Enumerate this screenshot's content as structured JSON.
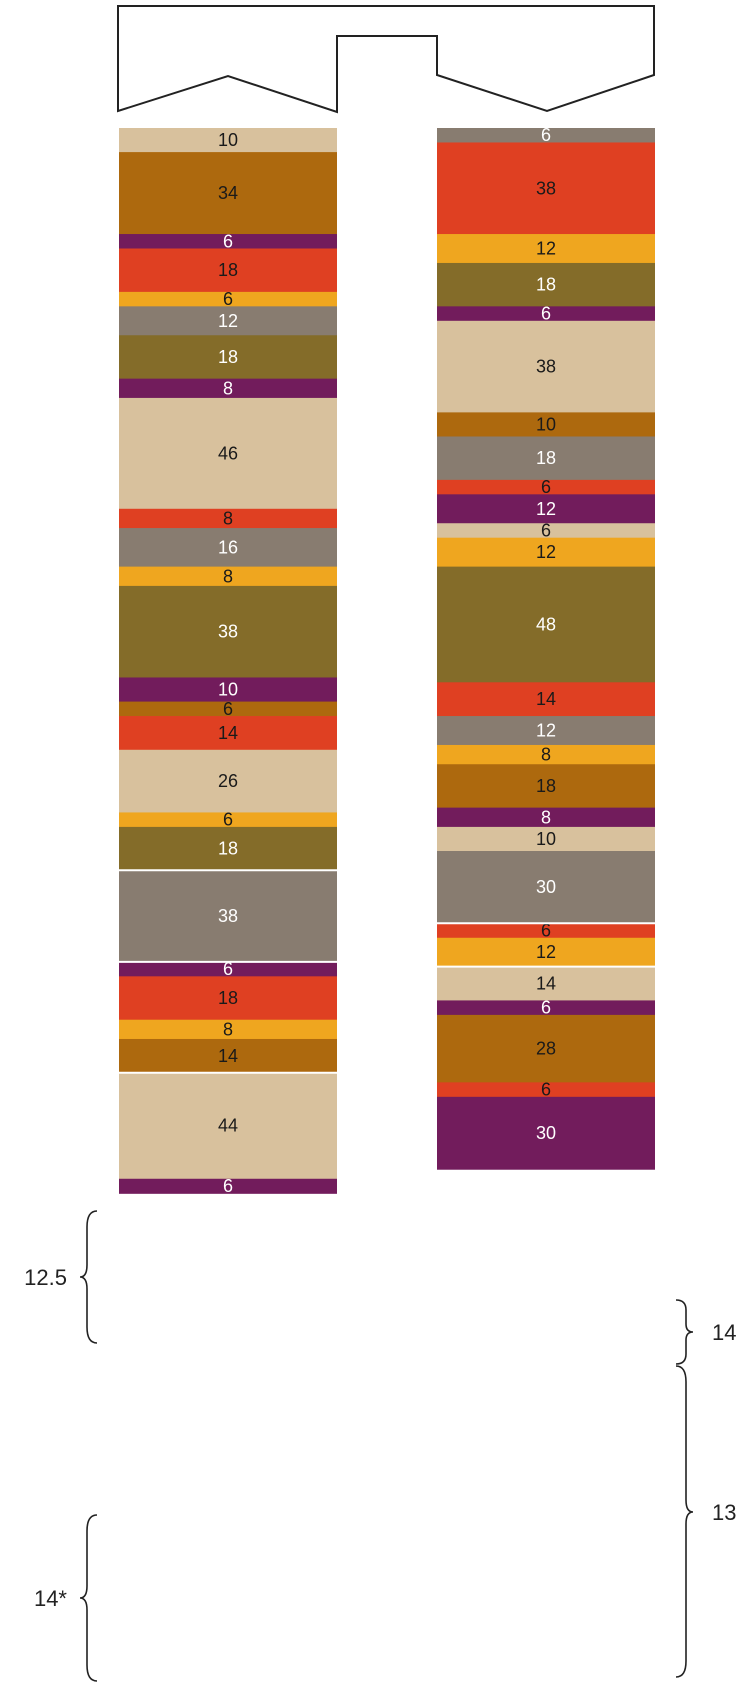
{
  "palette": {
    "tan": "#d8c19d",
    "brown": "#ad690e",
    "purple": "#721c5c",
    "red": "#df4022",
    "orange": "#efa61f",
    "gray": "#887c70",
    "olive": "#846c29",
    "dark_text": "#1a1a1a",
    "light_text": "#ffffff"
  },
  "left_column": [
    {
      "value": "10",
      "color": "tan"
    },
    {
      "value": "34",
      "color": "brown"
    },
    {
      "value": "6",
      "color": "purple"
    },
    {
      "value": "18",
      "color": "red"
    },
    {
      "value": "6",
      "color": "orange"
    },
    {
      "value": "12",
      "color": "gray"
    },
    {
      "value": "18",
      "color": "olive"
    },
    {
      "value": "8",
      "color": "purple"
    },
    {
      "value": "46",
      "color": "tan"
    },
    {
      "value": "8",
      "color": "red"
    },
    {
      "value": "16",
      "color": "gray"
    },
    {
      "value": "8",
      "color": "orange"
    },
    {
      "value": "38",
      "color": "olive"
    },
    {
      "value": "10",
      "color": "purple"
    },
    {
      "value": "6",
      "color": "brown"
    },
    {
      "value": "14",
      "color": "red"
    },
    {
      "value": "26",
      "color": "tan"
    },
    {
      "value": "6",
      "color": "orange"
    },
    {
      "value": "18",
      "color": "olive"
    },
    {
      "value": "38",
      "color": "gray"
    },
    {
      "value": "6",
      "color": "purple"
    },
    {
      "value": "18",
      "color": "red"
    },
    {
      "value": "8",
      "color": "orange"
    },
    {
      "value": "14",
      "color": "brown"
    },
    {
      "value": "44",
      "color": "tan"
    },
    {
      "value": "6",
      "color": "purple"
    }
  ],
  "right_column": [
    {
      "value": "6",
      "color": "gray"
    },
    {
      "value": "38",
      "color": "red"
    },
    {
      "value": "12",
      "color": "orange"
    },
    {
      "value": "18",
      "color": "olive"
    },
    {
      "value": "6",
      "color": "purple"
    },
    {
      "value": "38",
      "color": "tan"
    },
    {
      "value": "10",
      "color": "brown"
    },
    {
      "value": "18",
      "color": "gray"
    },
    {
      "value": "6",
      "color": "red"
    },
    {
      "value": "12",
      "color": "purple"
    },
    {
      "value": "6",
      "color": "tan"
    },
    {
      "value": "12",
      "color": "orange"
    },
    {
      "value": "48",
      "color": "olive"
    },
    {
      "value": "14",
      "color": "red"
    },
    {
      "value": "12",
      "color": "gray"
    },
    {
      "value": "8",
      "color": "orange"
    },
    {
      "value": "18",
      "color": "brown"
    },
    {
      "value": "8",
      "color": "purple"
    },
    {
      "value": "10",
      "color": "tan"
    },
    {
      "value": "30",
      "color": "gray"
    },
    {
      "value": "6",
      "color": "red"
    },
    {
      "value": "12",
      "color": "orange"
    },
    {
      "value": "14",
      "color": "tan"
    },
    {
      "value": "6",
      "color": "purple"
    },
    {
      "value": "28",
      "color": "brown"
    },
    {
      "value": "6",
      "color": "red"
    },
    {
      "value": "30",
      "color": "purple"
    }
  ],
  "annotations": {
    "left_upper": "12.5",
    "left_lower": "14*",
    "right_upper": "14",
    "right_lower": "13"
  }
}
